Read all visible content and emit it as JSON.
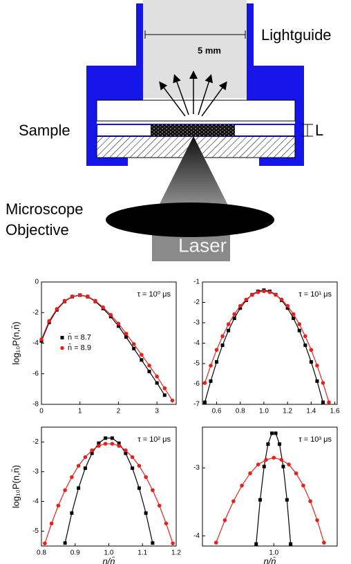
{
  "diagram": {
    "lightguide": "Lightguide",
    "width_label": "5 mm",
    "sample": "Sample",
    "thickness": "L",
    "objective": [
      "Microscope",
      "Objective"
    ],
    "laser": "Laser"
  },
  "chart_data": [
    {
      "type": "scatter",
      "annotation": "τ = 10⁰ μs",
      "ylabel": "log₁₀P(n,n̄)",
      "xlim": [
        0,
        3.5
      ],
      "xticks": [
        0,
        1,
        2,
        3
      ],
      "ylim": [
        -8,
        0
      ],
      "yticks": [
        0,
        -2,
        -4,
        -6,
        -8
      ],
      "legend": "center-left",
      "series": [
        {
          "name": "n̄ = 8.7",
          "color": "#000000",
          "marker": "square",
          "x": [
            0,
            0.2,
            0.4,
            0.6,
            0.8,
            1.0,
            1.2,
            1.4,
            1.6,
            1.8,
            2.0,
            2.2,
            2.4,
            2.6,
            2.8,
            3.0,
            3.2
          ],
          "values": [
            -3.85,
            -2.65,
            -1.82,
            -1.27,
            -0.96,
            -0.86,
            -0.96,
            -1.27,
            -1.73,
            -2.26,
            -2.88,
            -3.6,
            -4.35,
            -5.1,
            -5.85,
            -6.6,
            -7.4
          ]
        },
        {
          "name": "n̄ = 8.9",
          "color": "#e8201c",
          "marker": "circle",
          "x": [
            0,
            0.2,
            0.4,
            0.6,
            0.8,
            1.0,
            1.2,
            1.4,
            1.6,
            1.8,
            2.0,
            2.2,
            2.4,
            2.6,
            2.8,
            3.0,
            3.2,
            3.4
          ],
          "values": [
            -3.75,
            -2.55,
            -1.76,
            -1.23,
            -0.94,
            -0.85,
            -0.94,
            -1.23,
            -1.66,
            -2.15,
            -2.72,
            -3.38,
            -4.06,
            -4.76,
            -5.46,
            -6.18,
            -6.95,
            -7.75
          ]
        }
      ]
    },
    {
      "type": "scatter",
      "annotation": "τ = 10¹ μs",
      "xlim": [
        0.48,
        1.62
      ],
      "xticks": [
        0.6,
        0.8,
        {
          "value": 1,
          "label": "1.0"
        },
        1.2,
        1.4,
        1.6
      ],
      "ylim": [
        -7,
        -1
      ],
      "yticks": [
        -1,
        -2,
        -3,
        -4,
        -5,
        -6,
        -7
      ],
      "series": [
        {
          "color": "#000000",
          "marker": "square",
          "x": [
            0.5,
            0.55,
            0.6,
            0.65,
            0.7,
            0.75,
            0.8,
            0.85,
            0.9,
            0.95,
            1.0,
            1.05,
            1.1,
            1.15,
            1.2,
            1.25,
            1.3,
            1.35,
            1.4,
            1.45,
            1.5
          ],
          "values": [
            -6.9,
            -5.86,
            -4.92,
            -4.1,
            -3.38,
            -2.78,
            -2.28,
            -1.9,
            -1.62,
            -1.46,
            -1.4,
            -1.46,
            -1.62,
            -1.9,
            -2.28,
            -2.78,
            -3.38,
            -4.1,
            -4.92,
            -5.86,
            -6.9
          ]
        },
        {
          "color": "#e8201c",
          "marker": "circle",
          "x": [
            0.5,
            0.55,
            0.6,
            0.65,
            0.7,
            0.75,
            0.8,
            0.85,
            0.9,
            0.95,
            1.0,
            1.05,
            1.1,
            1.15,
            1.2,
            1.25,
            1.3,
            1.35,
            1.4,
            1.45,
            1.5,
            1.55
          ],
          "values": [
            -5.95,
            -5.1,
            -4.33,
            -3.66,
            -3.07,
            -2.58,
            -2.17,
            -1.86,
            -1.63,
            -1.5,
            -1.45,
            -1.5,
            -1.63,
            -1.86,
            -2.17,
            -2.58,
            -3.07,
            -3.66,
            -4.33,
            -5.1,
            -5.95,
            -6.9
          ]
        }
      ]
    },
    {
      "type": "scatter",
      "annotation": "τ = 10² μs",
      "ylabel": "log₁₀P(n,n̄)",
      "xlabel": "n/n̄",
      "xlim": [
        0.8,
        1.2
      ],
      "xticks": [
        0.8,
        0.9,
        {
          "value": 1,
          "label": "1.0"
        },
        1.1,
        1.2
      ],
      "ylim": [
        -5.5,
        -1.5
      ],
      "yticks": [
        -2,
        -3,
        -4,
        -5
      ],
      "series": [
        {
          "color": "#000000",
          "marker": "square",
          "x": [
            0.87,
            0.89,
            0.91,
            0.93,
            0.95,
            0.97,
            0.99,
            1.01,
            1.03,
            1.05,
            1.07,
            1.09,
            1.11,
            1.13
          ],
          "values": [
            -5.4,
            -4.39,
            -3.55,
            -2.88,
            -2.38,
            -2.04,
            -1.87,
            -1.87,
            -2.04,
            -2.38,
            -2.88,
            -3.55,
            -4.39,
            -5.4
          ]
        },
        {
          "color": "#e8201c",
          "marker": "circle",
          "x": [
            0.81,
            0.83,
            0.85,
            0.87,
            0.89,
            0.91,
            0.93,
            0.95,
            0.97,
            0.99,
            1.01,
            1.03,
            1.05,
            1.07,
            1.09,
            1.11,
            1.13,
            1.15,
            1.17,
            1.19
          ],
          "values": [
            -5.41,
            -4.74,
            -4.14,
            -3.62,
            -3.18,
            -2.8,
            -2.51,
            -2.28,
            -2.13,
            -2.06,
            -2.06,
            -2.13,
            -2.28,
            -2.51,
            -2.8,
            -3.18,
            -3.62,
            -4.14,
            -4.74,
            -5.41
          ]
        }
      ]
    },
    {
      "type": "scatter",
      "annotation": "τ = 10³ μs",
      "xlabel": "n/n̄",
      "xscale": "log",
      "xlim": [
        0.83,
        1.18
      ],
      "xticks": [
        {
          "value": 1,
          "label": "1.0"
        }
      ],
      "ylim": [
        -4.15,
        -2.4
      ],
      "yticks": [
        -3,
        -4
      ],
      "series": [
        {
          "color": "#000000",
          "marker": "square",
          "x": [
            0.955,
            0.965,
            0.975,
            0.985,
            0.995,
            1.005,
            1.015,
            1.025,
            1.035,
            1.045
          ],
          "values": [
            -4.12,
            -3.47,
            -2.98,
            -2.65,
            -2.49,
            -2.49,
            -2.65,
            -2.98,
            -3.47,
            -4.12
          ]
        },
        {
          "color": "#e8201c",
          "marker": "circle",
          "x": [
            0.86,
            0.88,
            0.9,
            0.92,
            0.94,
            0.96,
            0.98,
            1.0,
            1.02,
            1.04,
            1.06,
            1.08,
            1.1,
            1.12,
            1.14
          ],
          "values": [
            -4.1,
            -3.77,
            -3.49,
            -3.26,
            -3.08,
            -2.95,
            -2.88,
            -2.85,
            -2.88,
            -2.95,
            -3.08,
            -3.26,
            -3.49,
            -3.77,
            -4.1
          ]
        }
      ]
    }
  ]
}
